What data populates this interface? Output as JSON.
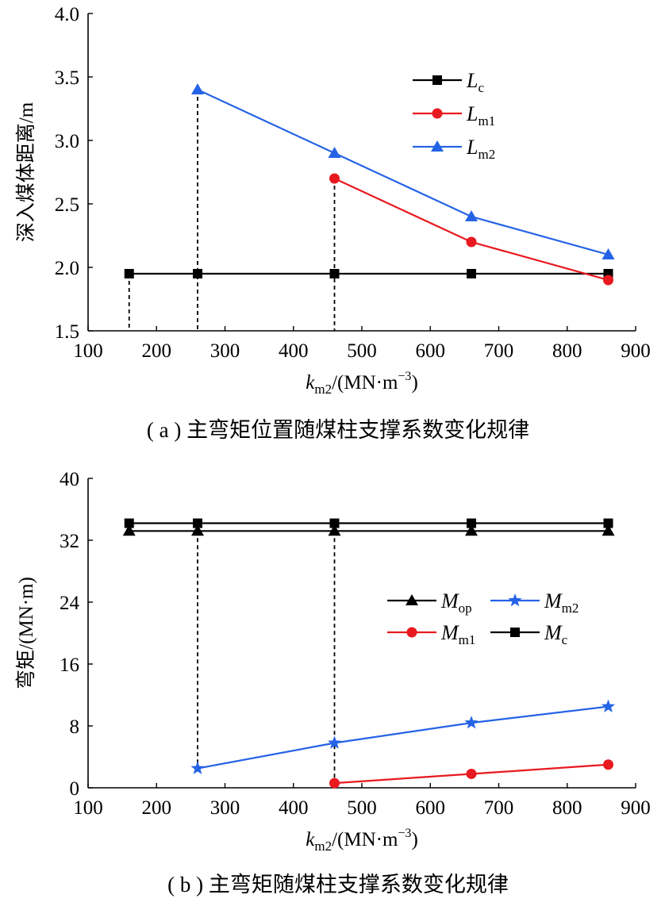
{
  "chart_data": [
    {
      "type": "line",
      "caption": "( a ) 主弯矩位置随煤柱支撑系数变化规律",
      "xlabel": {
        "italic": "k",
        "sub": "m2",
        "rest": "/(MN·m",
        "sup": "−3",
        "close": ")"
      },
      "ylabel": "深入煤体距离/m",
      "xlim": [
        100,
        900
      ],
      "ylim": [
        1.5,
        4.0
      ],
      "xticks": [
        100,
        200,
        300,
        400,
        500,
        600,
        700,
        800,
        900
      ],
      "yticks": [
        1.5,
        2.0,
        2.5,
        3.0,
        3.5,
        4.0
      ],
      "ytick_labels": [
        "1.5",
        "2.0",
        "2.5",
        "3.0",
        "3.5",
        "4.0"
      ],
      "legend_position": "top-right",
      "series": [
        {
          "name": "Lc",
          "name_main": "L",
          "name_sub": "c",
          "color": "#000000",
          "marker": "square",
          "x": [
            160,
            260,
            460,
            660,
            860
          ],
          "y": [
            1.95,
            1.95,
            1.95,
            1.95,
            1.95
          ]
        },
        {
          "name": "Lm1",
          "name_main": "L",
          "name_sub": "m1",
          "color": "#e8191f",
          "marker": "circle",
          "x": [
            460,
            660,
            860
          ],
          "y": [
            2.7,
            2.2,
            1.9
          ]
        },
        {
          "name": "Lm2",
          "name_main": "L",
          "name_sub": "m2",
          "color": "#2563e6",
          "marker": "triangle",
          "x": [
            260,
            460,
            660,
            860
          ],
          "y": [
            3.4,
            2.9,
            2.4,
            2.1
          ]
        }
      ],
      "dashed_drops": [
        {
          "x": 160,
          "y": 1.95
        },
        {
          "x": 260,
          "y": 3.4
        },
        {
          "x": 460,
          "y": 2.7
        }
      ]
    },
    {
      "type": "line",
      "caption": "( b ) 主弯矩随煤柱支撑系数变化规律",
      "xlabel": {
        "italic": "k",
        "sub": "m2",
        "rest": "/(MN·m",
        "sup": "−3",
        "close": ")"
      },
      "ylabel": "弯矩/(MN·m)",
      "xlim": [
        100,
        900
      ],
      "ylim": [
        0,
        40
      ],
      "xticks": [
        100,
        200,
        300,
        400,
        500,
        600,
        700,
        800,
        900
      ],
      "yticks": [
        0,
        8,
        16,
        24,
        32,
        40
      ],
      "ytick_labels": [
        "0",
        "8",
        "16",
        "24",
        "32",
        "40"
      ],
      "legend_position": "middle-right",
      "series": [
        {
          "name": "Mop",
          "name_main": "M",
          "name_sub": "op",
          "color": "#000000",
          "marker": "triangle",
          "x": [
            160,
            260,
            460,
            660,
            860
          ],
          "y": [
            33.2,
            33.2,
            33.2,
            33.2,
            33.2
          ]
        },
        {
          "name": "Mm1",
          "name_main": "M",
          "name_sub": "m1",
          "color": "#e8191f",
          "marker": "circle",
          "x": [
            460,
            660,
            860
          ],
          "y": [
            0.6,
            1.8,
            3.0
          ]
        },
        {
          "name": "Mm2",
          "name_main": "M",
          "name_sub": "m2",
          "color": "#2563e6",
          "marker": "star",
          "x": [
            260,
            460,
            660,
            860
          ],
          "y": [
            2.5,
            5.8,
            8.4,
            10.5
          ]
        },
        {
          "name": "Mc",
          "name_main": "M",
          "name_sub": "c",
          "color": "#000000",
          "marker": "square",
          "x": [
            160,
            260,
            460,
            660,
            860
          ],
          "y": [
            34.2,
            34.2,
            34.2,
            34.2,
            34.2
          ]
        }
      ],
      "dashed_drops": [
        {
          "x": 260,
          "y": 33.2,
          "y_end": 2.5
        },
        {
          "x": 460,
          "y": 33.2,
          "y_end": 0.6
        }
      ]
    }
  ]
}
